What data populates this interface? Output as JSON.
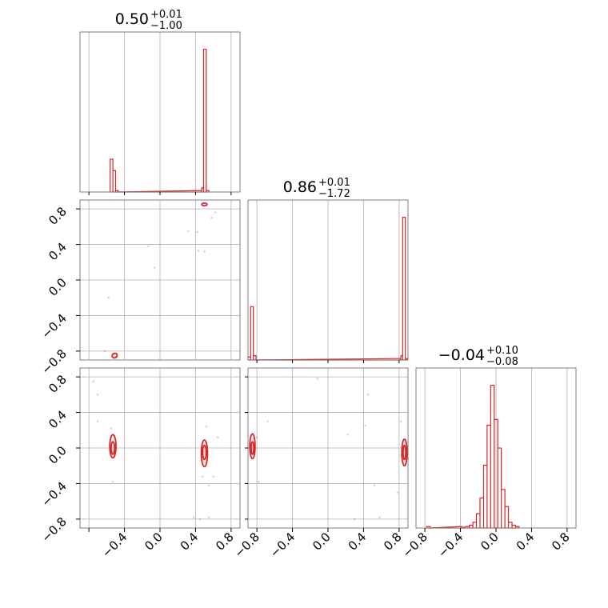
{
  "chart_data": {
    "type": "corner",
    "line_color": "#d62728",
    "grid": true,
    "parameters": [
      {
        "id": "p0",
        "range": [
          -0.9,
          0.9
        ],
        "title_value": "0.50",
        "title_plus": "+0.01",
        "title_minus": "−1.00"
      },
      {
        "id": "p1",
        "range": [
          -0.9,
          0.9
        ],
        "title_value": "0.86",
        "title_plus": "+0.01",
        "title_minus": "−1.72"
      },
      {
        "id": "p2",
        "range": [
          -0.9,
          0.9
        ],
        "title_value": "−0.04",
        "title_plus": "+0.10",
        "title_minus": "−0.08"
      }
    ],
    "tick_values": [
      -0.8,
      -0.4,
      0.0,
      0.4,
      0.8
    ],
    "tick_labels": [
      "−0.8",
      "−0.4",
      "0.0",
      "0.4",
      "0.8"
    ],
    "marginals": [
      {
        "param": "p0",
        "bins": [
          {
            "x0": -0.56,
            "x1": -0.53,
            "h": 0.23
          },
          {
            "x0": -0.53,
            "x1": -0.5,
            "h": 0.15
          },
          {
            "x0": -0.5,
            "x1": -0.47,
            "h": 0.01
          },
          {
            "x0": 0.44,
            "x1": 0.47,
            "h": 0.01
          },
          {
            "x0": 0.47,
            "x1": 0.49,
            "h": 0.03
          },
          {
            "x0": 0.49,
            "x1": 0.52,
            "h": 1.0
          },
          {
            "x0": 0.52,
            "x1": 0.55,
            "h": 0.01
          }
        ]
      },
      {
        "param": "p1",
        "bins": [
          {
            "x0": -0.9,
            "x1": -0.87,
            "h": 0.02
          },
          {
            "x0": -0.87,
            "x1": -0.84,
            "h": 0.37
          },
          {
            "x0": -0.84,
            "x1": -0.81,
            "h": 0.03
          },
          {
            "x0": 0.79,
            "x1": 0.82,
            "h": 0.01
          },
          {
            "x0": 0.82,
            "x1": 0.84,
            "h": 0.03
          },
          {
            "x0": 0.84,
            "x1": 0.87,
            "h": 0.99
          },
          {
            "x0": 0.87,
            "x1": 0.89,
            "h": 0.01
          }
        ]
      },
      {
        "param": "p2",
        "bins": [
          {
            "x0": -0.78,
            "x1": -0.74,
            "h": 0.01
          },
          {
            "x0": -0.42,
            "x1": -0.38,
            "h": 0.01
          },
          {
            "x0": -0.34,
            "x1": -0.3,
            "h": 0.01
          },
          {
            "x0": -0.3,
            "x1": -0.26,
            "h": 0.02
          },
          {
            "x0": -0.26,
            "x1": -0.22,
            "h": 0.04
          },
          {
            "x0": -0.22,
            "x1": -0.18,
            "h": 0.1
          },
          {
            "x0": -0.18,
            "x1": -0.14,
            "h": 0.21
          },
          {
            "x0": -0.14,
            "x1": -0.1,
            "h": 0.44
          },
          {
            "x0": -0.1,
            "x1": -0.06,
            "h": 0.72
          },
          {
            "x0": -0.06,
            "x1": -0.02,
            "h": 1.0
          },
          {
            "x0": -0.02,
            "x1": 0.02,
            "h": 0.76
          },
          {
            "x0": 0.02,
            "x1": 0.06,
            "h": 0.56
          },
          {
            "x0": 0.06,
            "x1": 0.1,
            "h": 0.27
          },
          {
            "x0": 0.1,
            "x1": 0.14,
            "h": 0.15
          },
          {
            "x0": 0.14,
            "x1": 0.18,
            "h": 0.04
          },
          {
            "x0": 0.18,
            "x1": 0.22,
            "h": 0.02
          },
          {
            "x0": 0.22,
            "x1": 0.26,
            "h": 0.01
          }
        ]
      }
    ],
    "joint": [
      {
        "xparam": "p0",
        "yparam": "p1",
        "contours": [
          {
            "cx": -0.51,
            "cy": -0.85,
            "rx": 0.03,
            "ry": 0.025,
            "rot": 25
          },
          {
            "cx": 0.5,
            "cy": 0.85,
            "rx": 0.03,
            "ry": 0.015,
            "rot": 0
          }
        ],
        "points": [
          [
            -0.58,
            -0.2
          ],
          [
            -0.62,
            -0.8
          ],
          [
            -0.13,
            0.38
          ],
          [
            -0.06,
            0.14
          ],
          [
            0.32,
            0.55
          ],
          [
            0.42,
            0.54
          ],
          [
            0.43,
            0.33
          ],
          [
            0.5,
            0.32
          ],
          [
            0.58,
            0.7
          ],
          [
            0.62,
            0.76
          ],
          [
            -0.52,
            -0.83
          ],
          [
            -0.49,
            -0.87
          ]
        ]
      },
      {
        "xparam": "p0",
        "yparam": "p2",
        "contours": [
          {
            "cx": -0.53,
            "cy": 0.02,
            "rx": 0.035,
            "ry": 0.13,
            "rot": 0
          },
          {
            "cx": -0.53,
            "cy": 0.0,
            "rx": 0.02,
            "ry": 0.07,
            "rot": 0
          },
          {
            "cx": 0.5,
            "cy": -0.06,
            "rx": 0.035,
            "ry": 0.15,
            "rot": 0
          },
          {
            "cx": 0.5,
            "cy": -0.05,
            "rx": 0.02,
            "ry": 0.08,
            "rot": 0
          }
        ],
        "points": [
          [
            -0.75,
            0.75
          ],
          [
            -0.7,
            0.6
          ],
          [
            -0.7,
            0.3
          ],
          [
            -0.53,
            -0.38
          ],
          [
            -0.55,
            0.22
          ],
          [
            0.38,
            -0.78
          ],
          [
            0.45,
            -0.8
          ],
          [
            0.55,
            -0.78
          ],
          [
            0.55,
            -0.42
          ],
          [
            0.6,
            -0.32
          ],
          [
            0.65,
            0.12
          ],
          [
            0.48,
            -0.32
          ],
          [
            0.52,
            0.24
          ]
        ]
      },
      {
        "xparam": "p1",
        "yparam": "p2",
        "contours": [
          {
            "cx": -0.85,
            "cy": 0.02,
            "rx": 0.03,
            "ry": 0.14,
            "rot": 0
          },
          {
            "cx": -0.85,
            "cy": 0.0,
            "rx": 0.015,
            "ry": 0.07,
            "rot": 0
          },
          {
            "cx": 0.86,
            "cy": -0.05,
            "rx": 0.03,
            "ry": 0.15,
            "rot": 0
          },
          {
            "cx": 0.86,
            "cy": -0.05,
            "rx": 0.015,
            "ry": 0.08,
            "rot": 0
          }
        ],
        "points": [
          [
            -0.68,
            0.3
          ],
          [
            -0.78,
            -0.38
          ],
          [
            -0.12,
            0.78
          ],
          [
            0.22,
            0.15
          ],
          [
            0.3,
            -0.8
          ],
          [
            0.42,
            0.25
          ],
          [
            0.52,
            -0.42
          ],
          [
            0.58,
            -0.78
          ],
          [
            0.78,
            -0.5
          ],
          [
            0.82,
            0.3
          ],
          [
            -0.8,
            0.12
          ],
          [
            0.45,
            0.6
          ]
        ]
      }
    ]
  }
}
